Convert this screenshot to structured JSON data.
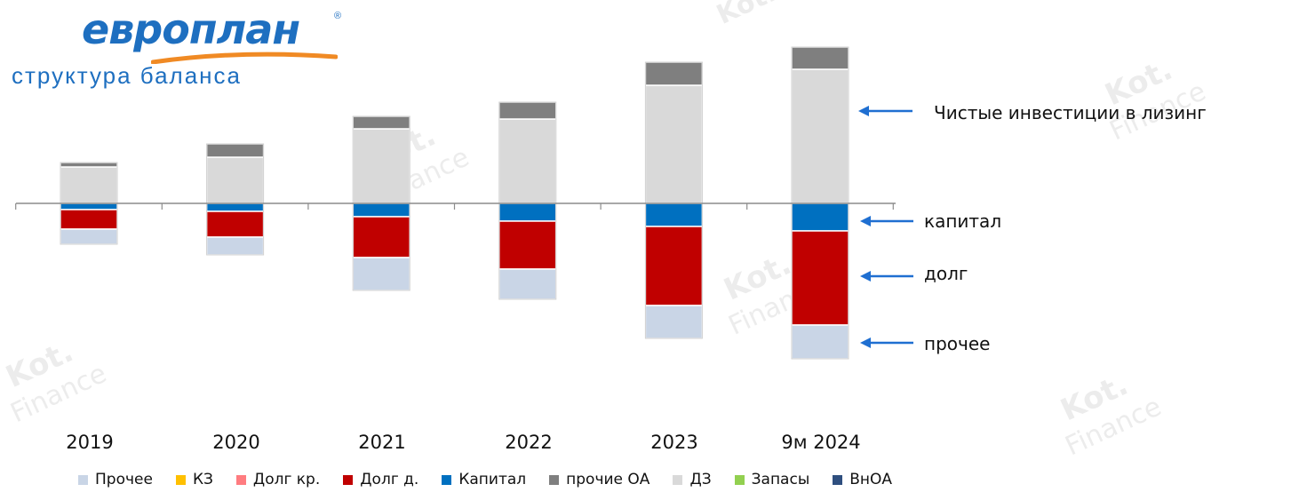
{
  "header": {
    "logo_text": "европлан",
    "logo_mark": "®",
    "subtitle": "структура баланса"
  },
  "annotations": {
    "leasing": "Чистые инвестиции в лизинг",
    "capital": "капитал",
    "debt": "долг",
    "other": "прочее"
  },
  "watermark": {
    "line1": "Kot.",
    "line2": "Finance"
  },
  "colors": {
    "axis": "#8c8c8c",
    "arrow": "#1f6fd1",
    "text": "#111111",
    "brand_blue": "#1e6fc0",
    "brand_orange": "#f08a24"
  },
  "chart_data": {
    "type": "bar",
    "stacked": true,
    "diverging": true,
    "categories": [
      "2019",
      "2020",
      "2021",
      "2022",
      "2023",
      "9м 2024"
    ],
    "legend": [
      {
        "name": "Прочее",
        "color": "#c9d5e6"
      },
      {
        "name": "КЗ",
        "color": "#ffc000"
      },
      {
        "name": "Долг кр.",
        "color": "#ff7c80"
      },
      {
        "name": "Долг д.",
        "color": "#c00000"
      },
      {
        "name": "Капитал",
        "color": "#0070c0"
      },
      {
        "name": "прочие ОА",
        "color": "#7f7f7f"
      },
      {
        "name": "ДЗ",
        "color": "#d9d9d9"
      },
      {
        "name": "Запасы",
        "color": "#92d050"
      },
      {
        "name": "ВнОА",
        "color": "#2f4f7f"
      }
    ],
    "assets": [
      {
        "name": "ДЗ",
        "color": "#d9d9d9",
        "values": [
          41,
          52,
          84,
          95,
          133,
          151
        ]
      },
      {
        "name": "прочие ОА",
        "color": "#7f7f7f",
        "values": [
          5,
          15,
          14,
          19,
          26,
          25
        ]
      }
    ],
    "liabilities": [
      {
        "name": "Капитал",
        "color": "#0070c0",
        "values": [
          7,
          9,
          15,
          20,
          26,
          31
        ]
      },
      {
        "name": "Долг д.",
        "color": "#c00000",
        "values": [
          22,
          29,
          46,
          54,
          89,
          106
        ]
      },
      {
        "name": "Прочее",
        "color": "#c9d5e6",
        "values": [
          17,
          20,
          37,
          34,
          37,
          38
        ]
      }
    ],
    "ylim": [
      -180,
      180
    ],
    "xlabel": "",
    "ylabel": ""
  }
}
